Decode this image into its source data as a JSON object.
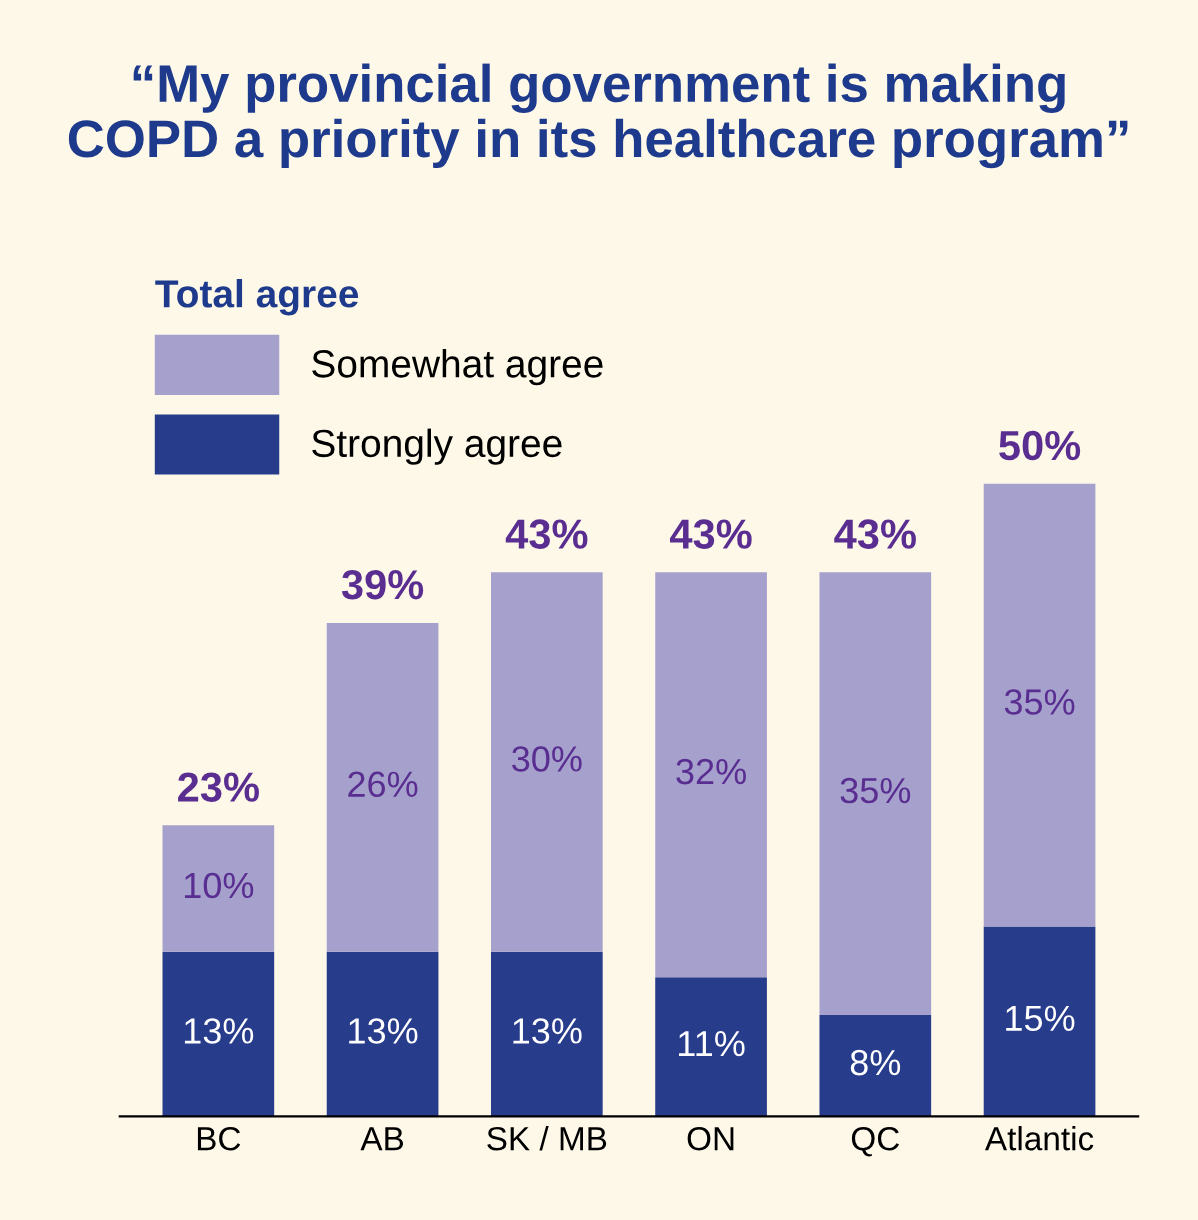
{
  "chart_data": {
    "type": "bar",
    "title": "“My provincial government is making\nCOPD a priority in its healthcare program”",
    "legend_title": "Total agree",
    "stacked": true,
    "legend": "top left",
    "categories": [
      "BC",
      "AB",
      "SK / MB",
      "ON",
      "QC",
      "Atlantic"
    ],
    "series": [
      {
        "name": "Strongly agree",
        "color": "#283c8c",
        "values": [
          13,
          13,
          13,
          11,
          8,
          15
        ],
        "value_labels": [
          "13%",
          "13%",
          "13%",
          "11%",
          "8%",
          "15%"
        ]
      },
      {
        "name": "Somewhat agree",
        "color": "#a5a1cc",
        "values": [
          10,
          26,
          30,
          32,
          35,
          35
        ],
        "value_labels": [
          "10%",
          "26%",
          "30%",
          "32%",
          "35%",
          "35%"
        ]
      }
    ],
    "totals": [
      "23%",
      "39%",
      "43%",
      "43%",
      "43%",
      "50%"
    ]
  }
}
